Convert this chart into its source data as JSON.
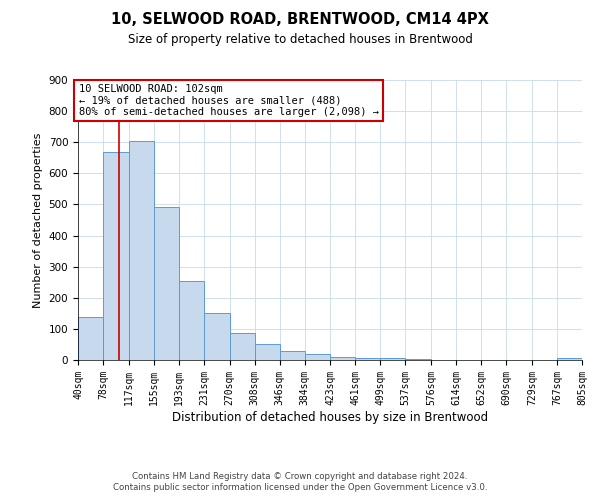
{
  "title": "10, SELWOOD ROAD, BRENTWOOD, CM14 4PX",
  "subtitle": "Size of property relative to detached houses in Brentwood",
  "xlabel": "Distribution of detached houses by size in Brentwood",
  "ylabel": "Number of detached properties",
  "footer1": "Contains HM Land Registry data © Crown copyright and database right 2024.",
  "footer2": "Contains public sector information licensed under the Open Government Licence v3.0.",
  "bin_edges": [
    40,
    78,
    117,
    155,
    193,
    231,
    270,
    308,
    346,
    384,
    423,
    461,
    499,
    537,
    576,
    614,
    652,
    690,
    729,
    767,
    805
  ],
  "bar_heights": [
    137,
    670,
    703,
    492,
    253,
    152,
    86,
    51,
    29,
    20,
    10,
    7,
    5,
    2,
    1,
    0,
    0,
    0,
    0,
    5
  ],
  "bar_color": "#c7d9ed",
  "bar_edge_color": "#5b9bd5",
  "vline_x": 102,
  "vline_color": "#cc0000",
  "ylim": [
    0,
    900
  ],
  "yticks": [
    0,
    100,
    200,
    300,
    400,
    500,
    600,
    700,
    800,
    900
  ],
  "annotation_title": "10 SELWOOD ROAD: 102sqm",
  "annotation_line1": "← 19% of detached houses are smaller (488)",
  "annotation_line2": "80% of semi-detached houses are larger (2,098) →",
  "annotation_box_color": "#cc0000",
  "background_color": "#ffffff",
  "grid_color": "#c8daea"
}
